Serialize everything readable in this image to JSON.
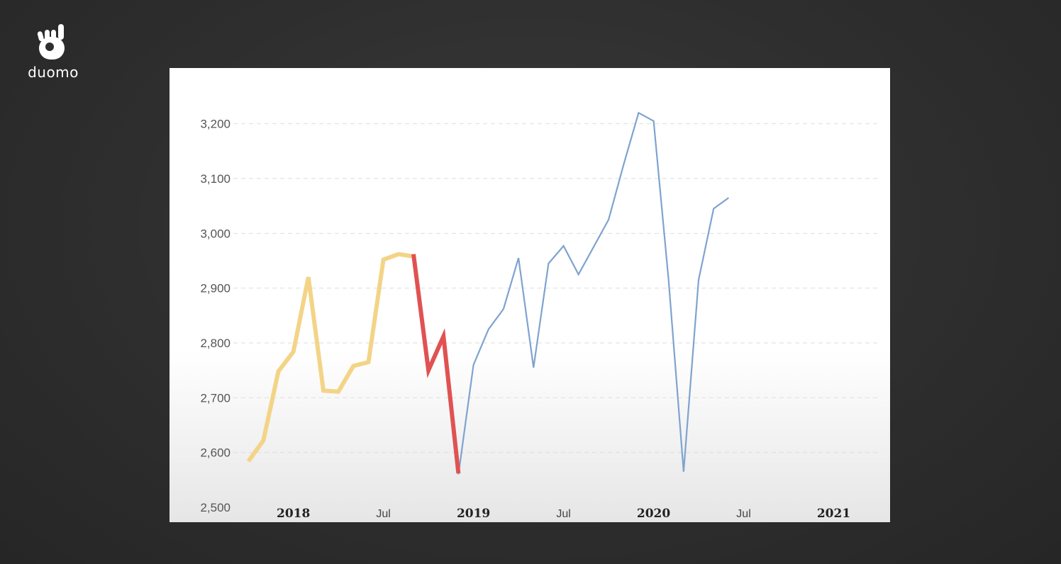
{
  "brand": {
    "name": "duomo",
    "icon": "hand-pointing-up-icon"
  },
  "chart_data": {
    "type": "line",
    "title": "",
    "xlabel": "",
    "ylabel": "",
    "ylim": [
      2500,
      3250
    ],
    "xlim": [
      "2017-09",
      "2021-04"
    ],
    "y_ticks": [
      2500,
      2600,
      2700,
      2800,
      2900,
      3000,
      3100,
      3200
    ],
    "y_tick_labels": [
      "2,500",
      "2,600",
      "2,700",
      "2,800",
      "2,900",
      "3,000",
      "3,100",
      "3,200"
    ],
    "x_ticks": [
      {
        "date": "2018-01",
        "label": "2018",
        "major": true
      },
      {
        "date": "2018-07",
        "label": "Jul",
        "major": false
      },
      {
        "date": "2019-01",
        "label": "2019",
        "major": true
      },
      {
        "date": "2019-07",
        "label": "Jul",
        "major": false
      },
      {
        "date": "2020-01",
        "label": "2020",
        "major": true
      },
      {
        "date": "2020-07",
        "label": "Jul",
        "major": false
      },
      {
        "date": "2021-01",
        "label": "2021",
        "major": true
      }
    ],
    "grid": {
      "horizontal": true,
      "style": "dashed"
    },
    "series": [
      {
        "color": "#7fa3cf",
        "width": 2.2,
        "x": [
          "2018-12",
          "2019-01",
          "2019-02",
          "2019-03",
          "2019-04",
          "2019-05",
          "2019-06",
          "2019-07",
          "2019-08",
          "2019-09",
          "2019-10",
          "2019-11",
          "2019-12",
          "2020-01",
          "2020-02",
          "2020-03",
          "2020-04",
          "2020-05",
          "2020-06"
        ],
        "y": [
          2560,
          2760,
          2825,
          2862,
          2955,
          2755,
          2945,
          2977,
          2925,
          2975,
          3025,
          3125,
          3220,
          3205,
          2915,
          2565,
          2915,
          3045,
          3065
        ]
      },
      {
        "color": "#f3d487",
        "width": 6,
        "x": [
          "2017-10",
          "2017-11",
          "2017-12",
          "2018-01",
          "2018-02",
          "2018-03",
          "2018-04",
          "2018-05",
          "2018-06",
          "2018-07",
          "2018-08",
          "2018-09"
        ],
        "y": [
          2584,
          2622,
          2748,
          2784,
          2920,
          2713,
          2711,
          2758,
          2765,
          2952,
          2962,
          2958
        ]
      },
      {
        "color": "#e05252",
        "width": 6,
        "x": [
          "2018-09",
          "2018-10",
          "2018-11",
          "2018-12"
        ],
        "y": [
          2962,
          2750,
          2812,
          2562
        ]
      }
    ]
  }
}
